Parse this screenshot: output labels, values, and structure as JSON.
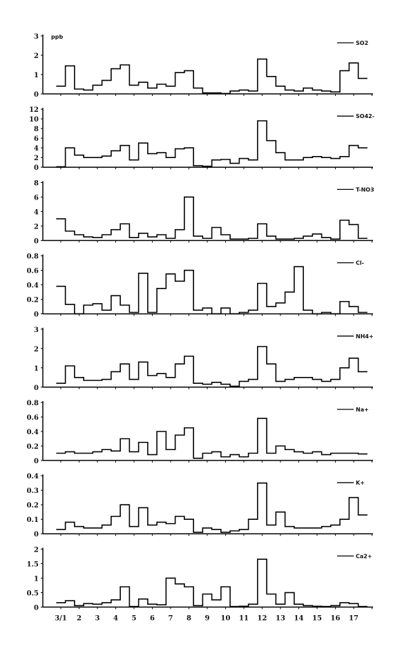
{
  "chart_data": {
    "type": "line",
    "step": true,
    "unit_label": "ppb",
    "x_start": 0.75,
    "x_step": 0.5,
    "xlim": [
      0,
      18
    ],
    "x_ticks": [
      1,
      2,
      3,
      4,
      5,
      6,
      7,
      8,
      9,
      10,
      11,
      12,
      13,
      14,
      15,
      16,
      17
    ],
    "x_tick_labels": [
      "3/1",
      "2",
      "3",
      "4",
      "5",
      "6",
      "7",
      "8",
      "9",
      "10",
      "11",
      "12",
      "13",
      "14",
      "15",
      "16",
      "17"
    ],
    "panels": [
      {
        "name": "SO2",
        "ylim": [
          0,
          3
        ],
        "yticks": [
          0,
          1,
          2,
          3
        ],
        "ytick_labels": [
          "0",
          "1",
          "2",
          "3"
        ],
        "values": [
          0.4,
          1.45,
          0.25,
          0.2,
          0.45,
          0.7,
          1.3,
          1.5,
          0.45,
          0.6,
          0.3,
          0.5,
          0.4,
          1.1,
          1.2,
          0.3,
          0.05,
          0.05,
          0.02,
          0.15,
          0.2,
          0.15,
          1.8,
          0.9,
          0.4,
          0.2,
          0.15,
          0.3,
          0.2,
          0.15,
          0.1,
          1.2,
          1.6,
          0.8
        ]
      },
      {
        "name": "SO42-",
        "ylim": [
          0,
          12
        ],
        "yticks": [
          0,
          2,
          4,
          6,
          8,
          10,
          12
        ],
        "ytick_labels": [
          "0",
          "2",
          "4",
          "6",
          "8",
          "10",
          "12"
        ],
        "values": [
          0.1,
          4.0,
          2.5,
          2.0,
          2.0,
          2.3,
          3.4,
          4.5,
          1.5,
          5.0,
          2.8,
          3.0,
          2.0,
          3.8,
          4.0,
          0.3,
          0.2,
          1.5,
          1.6,
          0.8,
          1.8,
          1.5,
          9.6,
          5.5,
          3.0,
          1.5,
          1.5,
          2.0,
          2.2,
          2.0,
          1.8,
          2.2,
          4.5,
          4.0
        ]
      },
      {
        "name": "T-NO3",
        "ylim": [
          0,
          8
        ],
        "yticks": [
          0,
          2,
          4,
          6,
          8
        ],
        "ytick_labels": [
          "0",
          "2",
          "4",
          "6",
          "8"
        ],
        "values": [
          3.0,
          1.3,
          0.8,
          0.5,
          0.4,
          0.8,
          1.5,
          2.3,
          0.4,
          1.0,
          0.5,
          0.8,
          0.3,
          1.5,
          6.0,
          0.6,
          0.3,
          1.8,
          0.8,
          0.2,
          0.2,
          0.3,
          2.3,
          0.6,
          0.2,
          0.2,
          0.3,
          0.6,
          0.9,
          0.4,
          0.2,
          2.8,
          2.2,
          0.3
        ]
      },
      {
        "name": "Cl-",
        "ylim": [
          0,
          0.8
        ],
        "yticks": [
          0,
          0.2,
          0.4,
          0.6,
          0.8
        ],
        "ytick_labels": [
          "0",
          "0.2",
          "0.4",
          "0.6",
          "0.8"
        ],
        "values": [
          0.38,
          0.13,
          0,
          0.12,
          0.14,
          0.05,
          0.25,
          0.12,
          0.02,
          0.56,
          0.02,
          0.35,
          0.55,
          0.45,
          0.6,
          0.05,
          0.08,
          0,
          0.08,
          0,
          0.02,
          0.05,
          0.42,
          0.1,
          0.15,
          0.3,
          0.65,
          0.05,
          0,
          0.02,
          0,
          0.17,
          0.1,
          0.02
        ]
      },
      {
        "name": "NH4+",
        "ylim": [
          0,
          3
        ],
        "yticks": [
          0,
          1,
          2,
          3
        ],
        "ytick_labels": [
          "0",
          "1",
          "2",
          "3"
        ],
        "values": [
          0.2,
          1.1,
          0.5,
          0.35,
          0.35,
          0.4,
          0.8,
          1.2,
          0.4,
          1.3,
          0.6,
          0.7,
          0.5,
          1.2,
          1.6,
          0.2,
          0.15,
          0.25,
          0.15,
          0.05,
          0.3,
          0.4,
          2.1,
          1.2,
          0.3,
          0.4,
          0.5,
          0.5,
          0.4,
          0.3,
          0.4,
          1.0,
          1.5,
          0.8
        ]
      },
      {
        "name": "Na+",
        "ylim": [
          0,
          0.8
        ],
        "yticks": [
          0,
          0.2,
          0.4,
          0.6,
          0.8
        ],
        "ytick_labels": [
          "0",
          "0.2",
          "0.4",
          "0.6",
          "0.8"
        ],
        "values": [
          0.1,
          0.12,
          0.1,
          0.1,
          0.12,
          0.15,
          0.13,
          0.3,
          0.12,
          0.25,
          0.08,
          0.4,
          0.15,
          0.35,
          0.45,
          0.03,
          0.1,
          0.12,
          0.05,
          0.08,
          0.05,
          0.1,
          0.58,
          0.1,
          0.2,
          0.15,
          0.12,
          0.1,
          0.12,
          0.08,
          0.1,
          0.1,
          0.1,
          0.09
        ]
      },
      {
        "name": "K+",
        "ylim": [
          0,
          0.4
        ],
        "yticks": [
          0,
          0.1,
          0.2,
          0.3,
          0.4
        ],
        "ytick_labels": [
          "0",
          "0.1",
          "0.2",
          "0.3",
          "0.4"
        ],
        "values": [
          0.03,
          0.08,
          0.05,
          0.04,
          0.04,
          0.06,
          0.12,
          0.2,
          0.05,
          0.18,
          0.06,
          0.08,
          0.07,
          0.12,
          0.1,
          0.01,
          0.04,
          0.03,
          0.01,
          0.02,
          0.03,
          0.1,
          0.35,
          0.06,
          0.15,
          0.05,
          0.04,
          0.04,
          0.04,
          0.05,
          0.06,
          0.1,
          0.25,
          0.13
        ]
      },
      {
        "name": "Ca2+",
        "ylim": [
          0,
          2
        ],
        "yticks": [
          0,
          0.5,
          1,
          1.5,
          2
        ],
        "ytick_labels": [
          "0",
          "0.5",
          "1",
          "1.5",
          "2"
        ],
        "values": [
          0.15,
          0.22,
          0.05,
          0.12,
          0.1,
          0.15,
          0.25,
          0.7,
          0.02,
          0.28,
          0.1,
          0.08,
          1.0,
          0.8,
          0.7,
          0.05,
          0.45,
          0.25,
          0.7,
          0.02,
          0.03,
          0.1,
          1.65,
          0.45,
          0.1,
          0.5,
          0.1,
          0.05,
          0.03,
          0.02,
          0.05,
          0.15,
          0.12,
          0.02
        ]
      }
    ]
  }
}
